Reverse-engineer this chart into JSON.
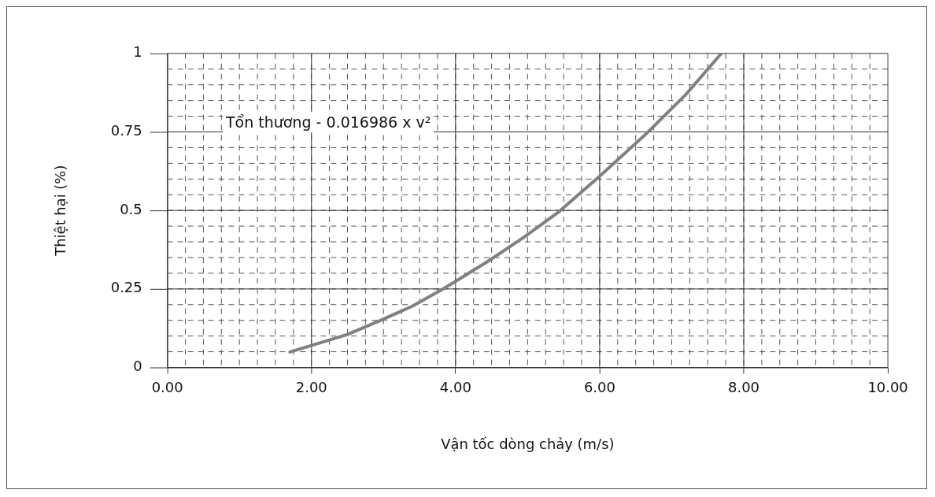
{
  "chart_data": {
    "type": "line",
    "xlabel": "Vận tốc dòng chảy (m/s)",
    "ylabel": "Thiệt hại (%)",
    "annotations": [
      "Tổn thương - 0.016986 x v²"
    ],
    "x": [
      1.7,
      2.0,
      2.5,
      2.95,
      3.4,
      3.79,
      4.0,
      4.45,
      4.95,
      5.42,
      6.0,
      6.65,
      7.2,
      7.69
    ],
    "series": [
      {
        "color": "#808080",
        "values": [
          0.049,
          0.07,
          0.105,
          0.149,
          0.195,
          0.245,
          0.274,
          0.338,
          0.415,
          0.493,
          0.609,
          0.745,
          0.87,
          1.0
        ]
      }
    ],
    "xlim": [
      0,
      10
    ],
    "xticks": [
      {
        "value": 0,
        "label": "0.00"
      },
      {
        "value": 2,
        "label": "2.00"
      },
      {
        "value": 4,
        "label": "4.00"
      },
      {
        "value": 6,
        "label": "6.00"
      },
      {
        "value": 8,
        "label": "8.00"
      },
      {
        "value": 10,
        "label": "10.00"
      }
    ],
    "ylim": [
      0,
      1
    ],
    "yticks": [
      0,
      0.25,
      0.5,
      0.75,
      1
    ],
    "grid": true,
    "legend": false,
    "marker": "none",
    "line_style": "solid"
  }
}
